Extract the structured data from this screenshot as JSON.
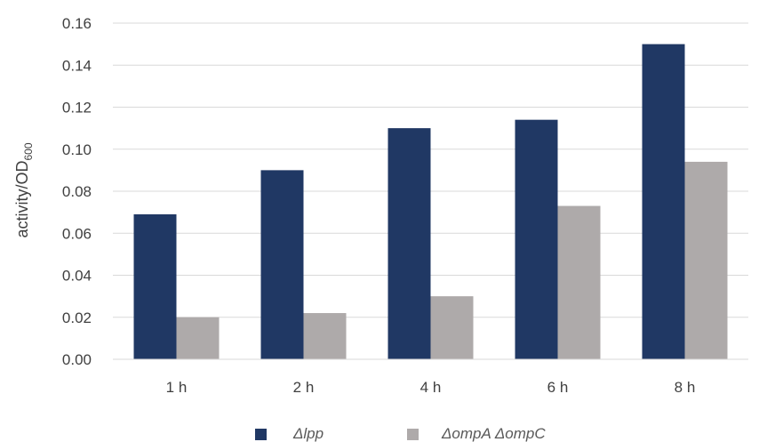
{
  "chart_data": {
    "type": "bar",
    "title": "",
    "xlabel": "",
    "ylabel": {
      "main": "activity/OD",
      "subscript": "600"
    },
    "categories": [
      "1 h",
      "2 h",
      "4 h",
      "6 h",
      "8 h"
    ],
    "series": [
      {
        "name": "Δlpp",
        "color": "#203864",
        "values": [
          0.069,
          0.09,
          0.11,
          0.114,
          0.15
        ]
      },
      {
        "name": "ΔompA ΔompC",
        "color": "#AEAAAA",
        "values": [
          0.02,
          0.022,
          0.03,
          0.073,
          0.094
        ]
      }
    ],
    "ylim": [
      0,
      0.16
    ],
    "yticks": [
      "0.00",
      "0.02",
      "0.04",
      "0.06",
      "0.08",
      "0.10",
      "0.12",
      "0.14",
      "0.16"
    ],
    "grid": true,
    "gridline_color": "#D9D9D9",
    "legend_position": "bottom"
  }
}
